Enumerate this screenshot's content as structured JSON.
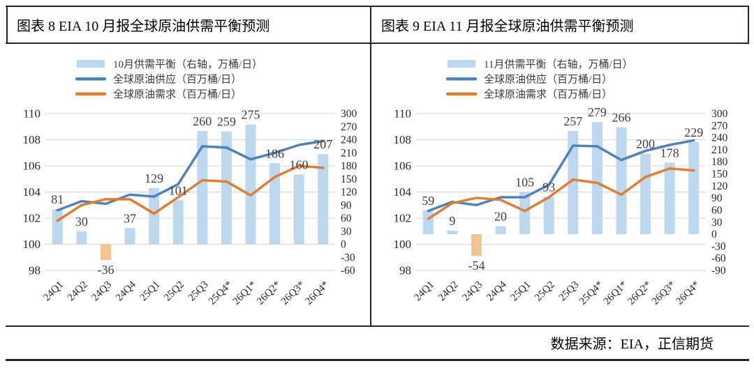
{
  "source_note": "数据来源：EIA，正信期货",
  "colors": {
    "bar_positive": "#BDD7EE",
    "bar_negative": "#F3C492",
    "supply_line": "#4F81BD",
    "demand_line": "#DF7D32",
    "gridline": "#D6D6D6",
    "table_border": "#232323",
    "value_label_text": "#3F3F3F",
    "axis_text": "#262626"
  },
  "chart_data": [
    {
      "type": "combo-bar-line",
      "panel_title": "图表 8 EIA 10 月报全球原油供需平衡预测",
      "title": "图表 8 EIA 10 月报全球原油供需平衡预测",
      "legend_position": "top",
      "grid": true,
      "categories": [
        "24Q1",
        "24Q2",
        "24Q3",
        "24Q4",
        "25Q1",
        "25Q2",
        "25Q3",
        "25Q4*",
        "26Q1*",
        "26Q2*",
        "26Q3*",
        "26Q4*"
      ],
      "left_axis": {
        "min": 98,
        "max": 110,
        "step": 2
      },
      "right_axis": {
        "min": -60,
        "max": 300,
        "step": 30
      },
      "series": [
        {
          "name": "10月供需平衡（右轴，万桶/日）",
          "type": "bar",
          "axis": "right",
          "values": [
            81,
            30,
            -36,
            37,
            129,
            101,
            260,
            259,
            275,
            186,
            160,
            207
          ],
          "data_labels": true
        },
        {
          "name": "全球原油供应（百万桶/日）",
          "type": "line",
          "axis": "left",
          "values": [
            102.6,
            103.3,
            103.1,
            103.8,
            103.65,
            104.6,
            107.5,
            107.4,
            106.5,
            107.0,
            107.6,
            107.9
          ]
        },
        {
          "name": "全球原油需求（百万桶/日）",
          "type": "line",
          "axis": "left",
          "values": [
            101.8,
            103.0,
            103.45,
            103.45,
            102.35,
            103.6,
            104.9,
            104.8,
            103.75,
            105.15,
            106.0,
            105.85
          ]
        }
      ]
    },
    {
      "type": "combo-bar-line",
      "panel_title": "图表 9 EIA 11 月报全球原油供需平衡预测",
      "title": "图表 9 EIA 11 月报全球原油供需平衡预测",
      "legend_position": "top",
      "grid": true,
      "categories": [
        "24Q1",
        "24Q2",
        "24Q3",
        "24Q4",
        "25Q1",
        "25Q2",
        "25Q3",
        "25Q4*",
        "26Q1*",
        "26Q2*",
        "26Q3*",
        "26Q4*"
      ],
      "left_axis": {
        "min": 98,
        "max": 110,
        "step": 2
      },
      "right_axis": {
        "min": -90,
        "max": 300,
        "step": 30
      },
      "series": [
        {
          "name": "11月供需平衡（右轴，万桶/日）",
          "type": "bar",
          "axis": "right",
          "values": [
            59,
            9,
            -54,
            20,
            105,
            93,
            257,
            279,
            266,
            200,
            178,
            229
          ],
          "data_labels": true
        },
        {
          "name": "全球原油供应（百万桶/日）",
          "type": "line",
          "axis": "left",
          "values": [
            102.55,
            103.25,
            103.0,
            103.6,
            103.6,
            104.55,
            107.55,
            107.5,
            106.45,
            107.15,
            107.6,
            107.95
          ]
        },
        {
          "name": "全球原油需求（百万桶/日）",
          "type": "line",
          "axis": "left",
          "values": [
            101.95,
            103.15,
            103.55,
            103.4,
            102.55,
            103.6,
            104.95,
            104.7,
            103.8,
            105.15,
            105.8,
            105.65
          ]
        }
      ]
    }
  ]
}
